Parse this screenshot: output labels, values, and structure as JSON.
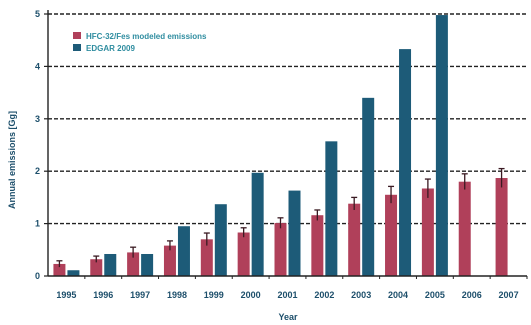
{
  "chart_data": {
    "type": "bar",
    "xlabel": "Year",
    "ylabel": "Annual emissions [Gg]",
    "ylim": [
      0,
      5
    ],
    "yticks": [
      "0",
      "1",
      "2",
      "3",
      "4",
      "5"
    ],
    "categories": [
      "1995",
      "1996",
      "1997",
      "1998",
      "1999",
      "2000",
      "2001",
      "2002",
      "2003",
      "2004",
      "2005",
      "2006",
      "2007"
    ],
    "grid": "horizontal dashed",
    "legend_position": "top-left",
    "series": [
      {
        "name": "HFC-32/Fes modeled emissions",
        "color": "#b0405a",
        "values": [
          0.23,
          0.32,
          0.45,
          0.58,
          0.7,
          0.83,
          1.01,
          1.16,
          1.38,
          1.55,
          1.67,
          1.8,
          1.87
        ],
        "errors": [
          0.06,
          0.06,
          0.1,
          0.09,
          0.12,
          0.09,
          0.1,
          0.1,
          0.12,
          0.16,
          0.18,
          0.15,
          0.18
        ]
      },
      {
        "name": "EDGAR 2009",
        "color": "#1d5b78",
        "values": [
          0.11,
          0.42,
          0.42,
          0.95,
          1.37,
          1.97,
          1.63,
          2.57,
          3.4,
          4.33,
          4.98,
          null,
          null
        ]
      }
    ]
  }
}
